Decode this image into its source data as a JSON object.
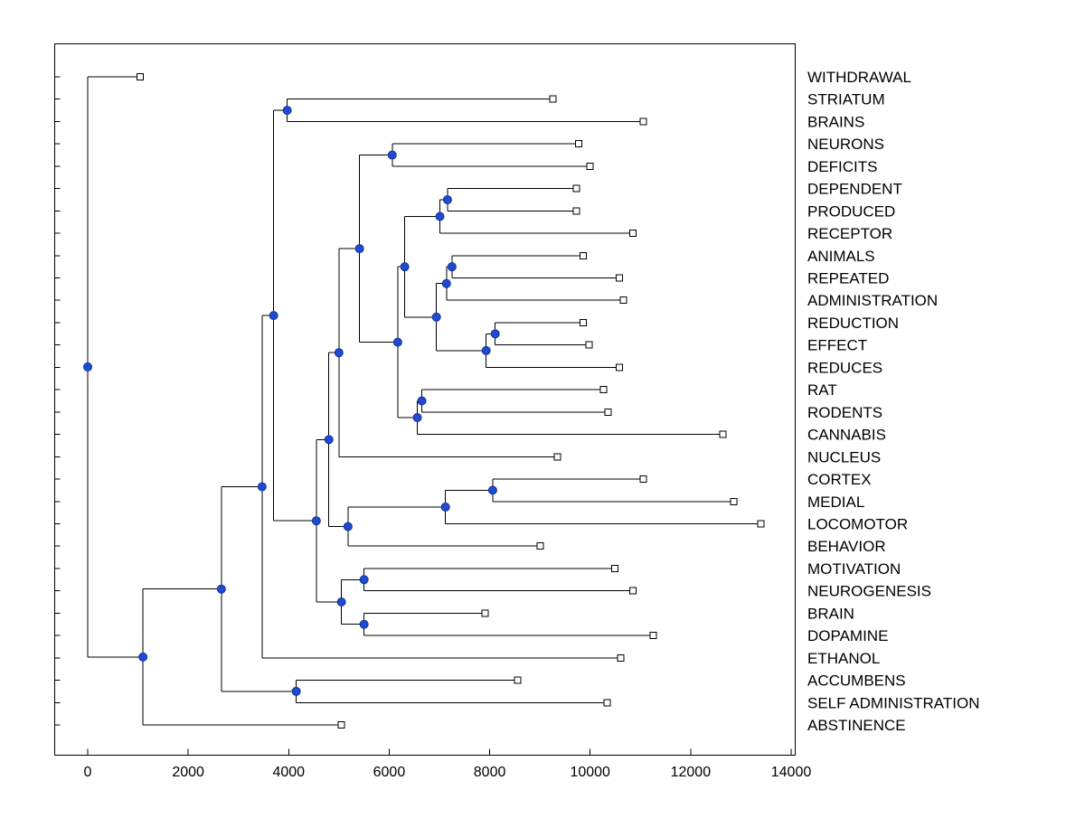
{
  "chart_data": {
    "type": "dendrogram",
    "title": "",
    "xlabel": "",
    "ylabel": "",
    "orientation": "root-left-leaves-right",
    "xlim": [
      -670,
      14100
    ],
    "x_ticks": [
      0,
      2000,
      4000,
      6000,
      8000,
      10000,
      12000,
      14000
    ],
    "grid": false,
    "legend": "none",
    "marker_semantics": {
      "branch_node": "filled-circle",
      "leaf_node": "open-square"
    },
    "colors": {
      "line": "#000000",
      "branch_fill": "#1e4bd2",
      "branch_edge": "#123193",
      "leaf_fill": "#ffffff",
      "leaf_edge": "#000000",
      "text": "#000000",
      "background": "#ffffff"
    },
    "leaf_order_top_to_bottom": [
      "WITHDRAWAL",
      "STRIATUM",
      "BRAINS",
      "NEURONS",
      "DEFICITS",
      "DEPENDENT",
      "PRODUCED",
      "RECEPTOR",
      "ANIMALS",
      "REPEATED",
      "ADMINISTRATION",
      "REDUCTION",
      "EFFECT",
      "REDUCES",
      "RAT",
      "RODENTS",
      "CANNABIS",
      "NUCLEUS",
      "CORTEX",
      "MEDIAL",
      "LOCOMOTOR",
      "BEHAVIOR",
      "MOTIVATION",
      "NEUROGENESIS",
      "BRAIN",
      "DOPAMINE",
      "ETHANOL",
      "ACCUMBENS",
      "SELF ADMINISTRATION",
      "ABSTINENCE"
    ],
    "tree": {
      "x": 0,
      "c": [
        {
          "name": "WITHDRAWAL",
          "x": 1040
        },
        {
          "x": 1100,
          "c": [
            {
              "x": 2660,
              "c": [
                {
                  "x": 3470,
                  "c": [
                    {
                      "x": 3700,
                      "c": [
                        {
                          "x": 3970,
                          "c": [
                            {
                              "name": "STRIATUM",
                              "x": 9260
                            },
                            {
                              "name": "BRAINS",
                              "x": 11060
                            }
                          ]
                        },
                        {
                          "x": 4550,
                          "c": [
                            {
                              "x": 4800,
                              "c": [
                                {
                                  "x": 5000,
                                  "c": [
                                    {
                                      "x": 5410,
                                      "c": [
                                        {
                                          "x": 6060,
                                          "c": [
                                            {
                                              "name": "NEURONS",
                                              "x": 9770
                                            },
                                            {
                                              "name": "DEFICITS",
                                              "x": 10000
                                            }
                                          ]
                                        },
                                        {
                                          "x": 6170,
                                          "c": [
                                            {
                                              "x": 6310,
                                              "c": [
                                                {
                                                  "x": 7010,
                                                  "c": [
                                                    {
                                                      "x": 7160,
                                                      "c": [
                                                        {
                                                          "name": "DEPENDENT",
                                                          "x": 9730
                                                        },
                                                        {
                                                          "name": "PRODUCED",
                                                          "x": 9730
                                                        }
                                                      ]
                                                    },
                                                    {
                                                      "name": "RECEPTOR",
                                                      "x": 10850
                                                    }
                                                  ]
                                                },
                                                {
                                                  "x": 6940,
                                                  "c": [
                                                    {
                                                      "x": 7140,
                                                      "c": [
                                                        {
                                                          "x": 7250,
                                                          "c": [
                                                            {
                                                              "name": "ANIMALS",
                                                              "x": 9860
                                                            },
                                                            {
                                                              "name": "REPEATED",
                                                              "x": 10580
                                                            }
                                                          ]
                                                        },
                                                        {
                                                          "name": "ADMINISTRATION",
                                                          "x": 10660
                                                        }
                                                      ]
                                                    },
                                                    {
                                                      "x": 7930,
                                                      "c": [
                                                        {
                                                          "x": 8110,
                                                          "c": [
                                                            {
                                                              "name": "REDUCTION",
                                                              "x": 9860
                                                            },
                                                            {
                                                              "name": "EFFECT",
                                                              "x": 9980
                                                            }
                                                          ]
                                                        },
                                                        {
                                                          "name": "REDUCES",
                                                          "x": 10580
                                                        }
                                                      ]
                                                    }
                                                  ]
                                                }
                                              ]
                                            },
                                            {
                                              "x": 6560,
                                              "c": [
                                                {
                                                  "x": 6650,
                                                  "c": [
                                                    {
                                                      "name": "RAT",
                                                      "x": 10270
                                                    },
                                                    {
                                                      "name": "RODENTS",
                                                      "x": 10360
                                                    }
                                                  ]
                                                },
                                                {
                                                  "name": "CANNABIS",
                                                  "x": 12640
                                                }
                                              ]
                                            }
                                          ]
                                        }
                                      ]
                                    },
                                    {
                                      "name": "NUCLEUS",
                                      "x": 9350
                                    }
                                  ]
                                },
                                {
                                  "x": 5180,
                                  "c": [
                                    {
                                      "x": 7120,
                                      "c": [
                                        {
                                          "x": 8060,
                                          "c": [
                                            {
                                              "name": "CORTEX",
                                              "x": 11060
                                            },
                                            {
                                              "name": "MEDIAL",
                                              "x": 12860
                                            }
                                          ]
                                        },
                                        {
                                          "name": "LOCOMOTOR",
                                          "x": 13400
                                        }
                                      ]
                                    },
                                    {
                                      "name": "BEHAVIOR",
                                      "x": 9010
                                    }
                                  ]
                                }
                              ]
                            },
                            {
                              "x": 5050,
                              "c": [
                                {
                                  "x": 5500,
                                  "c": [
                                    {
                                      "name": "MOTIVATION",
                                      "x": 10490
                                    },
                                    {
                                      "name": "NEUROGENESIS",
                                      "x": 10850
                                    }
                                  ]
                                },
                                {
                                  "x": 5500,
                                  "c": [
                                    {
                                      "name": "BRAIN",
                                      "x": 7910
                                    },
                                    {
                                      "name": "DOPAMINE",
                                      "x": 11260
                                    }
                                  ]
                                }
                              ]
                            }
                          ]
                        }
                      ]
                    },
                    {
                      "name": "ETHANOL",
                      "x": 10610
                    }
                  ]
                },
                {
                  "x": 4150,
                  "c": [
                    {
                      "name": "ACCUMBENS",
                      "x": 8560
                    },
                    {
                      "name": "SELF ADMINISTRATION",
                      "x": 10340
                    }
                  ]
                }
              ]
            },
            {
              "name": "ABSTINENCE",
              "x": 5050
            }
          ]
        }
      ]
    }
  }
}
